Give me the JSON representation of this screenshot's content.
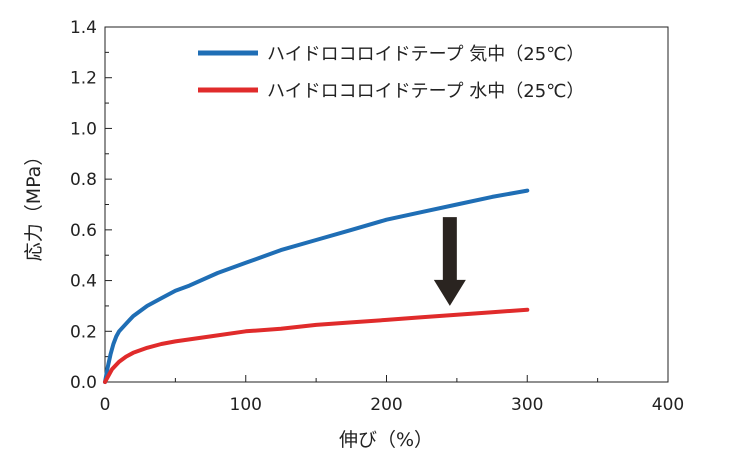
{
  "chart_data": {
    "type": "line",
    "xlabel": "伸び（%）",
    "ylabel": "応力（MPa）",
    "xlim": [
      0,
      400
    ],
    "ylim": [
      0,
      1.4
    ],
    "x_ticks": [
      0,
      100,
      200,
      300,
      400
    ],
    "y_ticks": [
      0.0,
      0.2,
      0.4,
      0.6,
      0.8,
      1.0,
      1.2,
      1.4
    ],
    "x_tick_labels": [
      "0",
      "100",
      "200",
      "300",
      "400"
    ],
    "y_tick_labels": [
      "0.0",
      "0.2",
      "0.4",
      "0.6",
      "0.8",
      "1.0",
      "1.2",
      "1.4"
    ],
    "grid": false,
    "legend_position": "top-right",
    "series": [
      {
        "name": "ハイドロコロイドテープ 気中（25℃）",
        "color": "#1f6eb5",
        "x": [
          0,
          2,
          4,
          6,
          8,
          10,
          15,
          20,
          30,
          40,
          50,
          60,
          80,
          100,
          125,
          150,
          175,
          200,
          225,
          250,
          275,
          300
        ],
        "y": [
          0,
          0.06,
          0.11,
          0.15,
          0.18,
          0.2,
          0.23,
          0.26,
          0.3,
          0.33,
          0.36,
          0.38,
          0.43,
          0.47,
          0.52,
          0.56,
          0.6,
          0.64,
          0.67,
          0.7,
          0.73,
          0.755
        ]
      },
      {
        "name": "ハイドロコロイドテープ 水中（25℃）",
        "color": "#e02b2b",
        "x": [
          0,
          2,
          5,
          10,
          15,
          20,
          30,
          40,
          50,
          75,
          100,
          125,
          150,
          175,
          200,
          225,
          250,
          275,
          300
        ],
        "y": [
          0,
          0.02,
          0.05,
          0.08,
          0.1,
          0.115,
          0.135,
          0.15,
          0.16,
          0.18,
          0.2,
          0.21,
          0.225,
          0.235,
          0.245,
          0.255,
          0.265,
          0.275,
          0.285
        ]
      }
    ],
    "annotations": [
      {
        "type": "arrow",
        "direction": "down",
        "color": "#2a2420",
        "x": 245,
        "y_from": 0.65,
        "y_to": 0.3
      }
    ]
  }
}
